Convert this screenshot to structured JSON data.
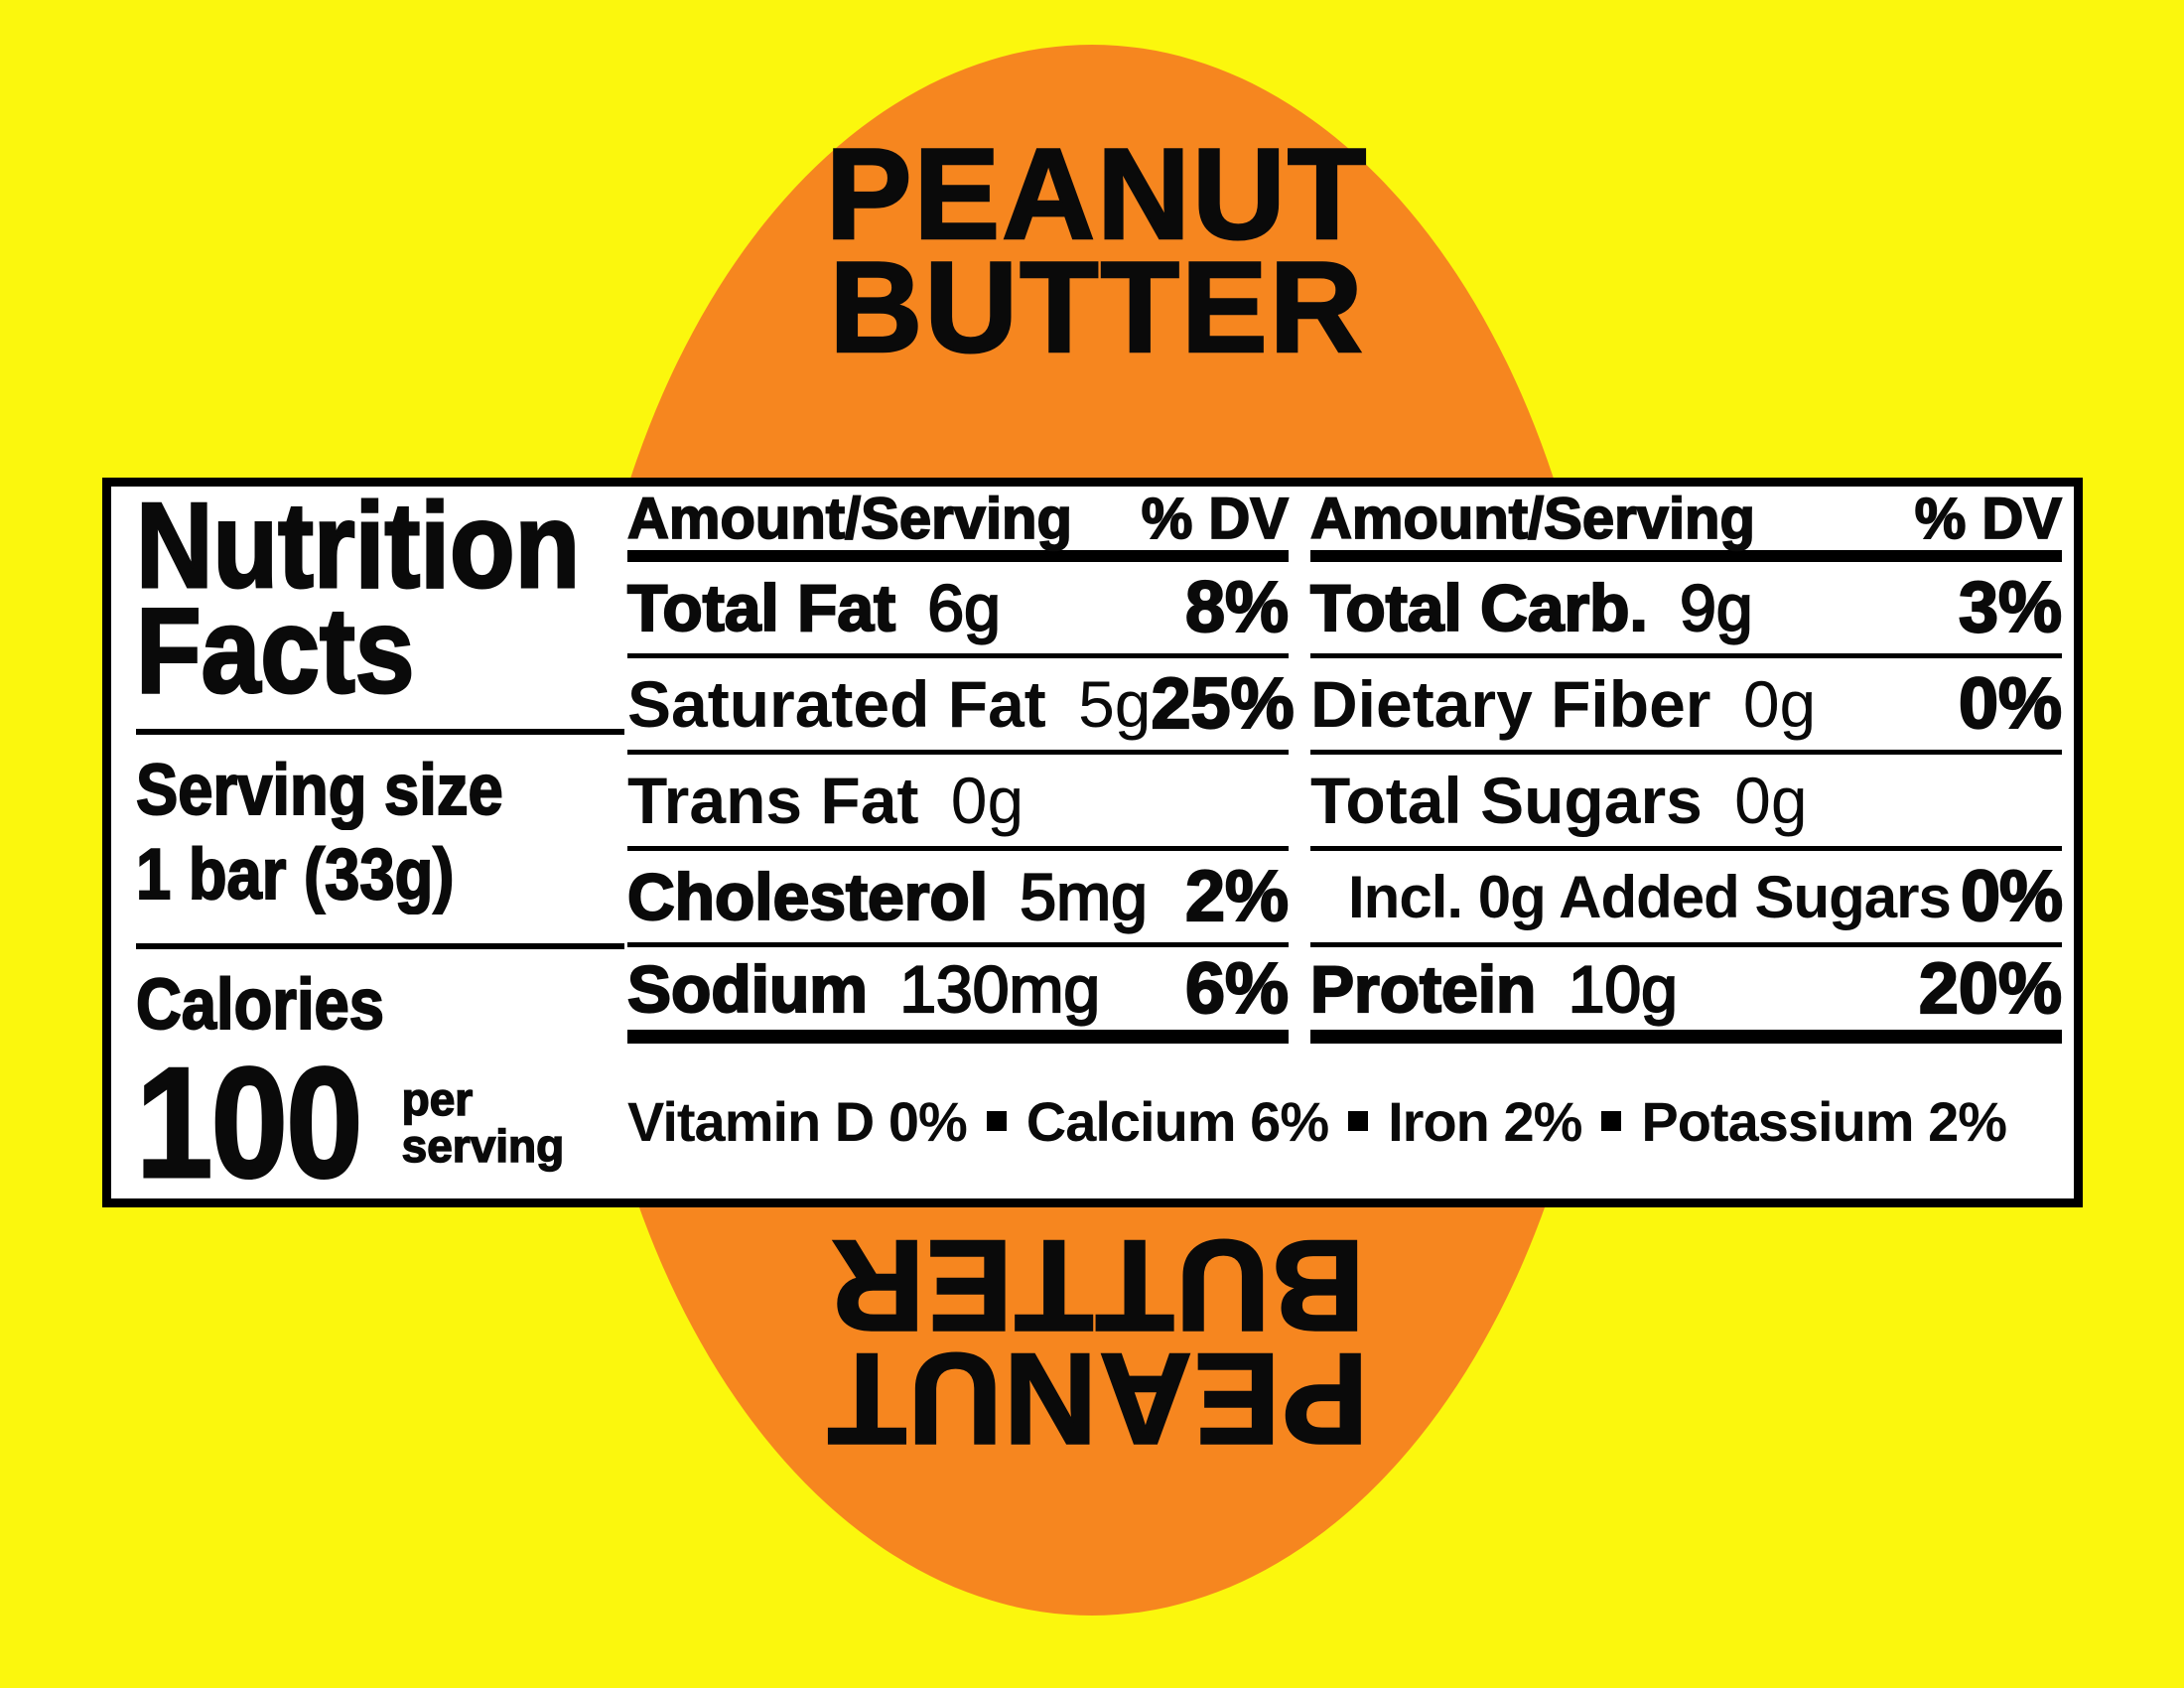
{
  "colors": {
    "background_yellow": "#FBF70D",
    "circle_orange": "#F6861F",
    "panel_white": "#FFFFFF",
    "text_black": "#0A0A0A"
  },
  "top_title": {
    "line1": "PEANUT",
    "line2": "BUTTER"
  },
  "bottom_title_rotated": {
    "line1": "PEANUT",
    "line2": "BUTTER"
  },
  "panel": {
    "title_line1": "Nutrition",
    "title_line2": "Facts",
    "serving_size_label": "Serving size",
    "serving_size_value": "1 bar (33g)",
    "calories_label": "Calories",
    "calories_value": "100",
    "calories_suffix_line1": "per",
    "calories_suffix_line2": "serving",
    "columns": [
      {
        "header_amount": "Amount/Serving",
        "header_dv": "% DV",
        "rows": [
          {
            "name": "Total Fat",
            "amount": "6g",
            "dv": "8%"
          },
          {
            "name": "Saturated Fat",
            "amount": "5g",
            "dv": "25%"
          },
          {
            "name": "Trans Fat",
            "amount": "0g",
            "dv": ""
          },
          {
            "name": "Cholesterol",
            "amount": "5mg",
            "dv": "2%"
          },
          {
            "name": "Sodium",
            "amount": "130mg",
            "dv": "6%"
          }
        ]
      },
      {
        "header_amount": "Amount/Serving",
        "header_dv": "% DV",
        "rows": [
          {
            "name": "Total Carb.",
            "amount": "9g",
            "dv": "3%"
          },
          {
            "name": "Dietary Fiber",
            "amount": "0g",
            "dv": "0%"
          },
          {
            "name": "Total Sugars",
            "amount": "0g",
            "dv": ""
          },
          {
            "name": "Incl. 0g Added Sugars",
            "amount": "",
            "dv": "0%"
          },
          {
            "name": "Protein",
            "amount": "10g",
            "dv": "20%"
          }
        ]
      }
    ],
    "micronutrients": [
      {
        "name": "Vitamin D",
        "value": "0%"
      },
      {
        "name": "Calcium",
        "value": "6%"
      },
      {
        "name": "Iron",
        "value": "2%"
      },
      {
        "name": "Potassium",
        "value": "2%"
      }
    ]
  }
}
